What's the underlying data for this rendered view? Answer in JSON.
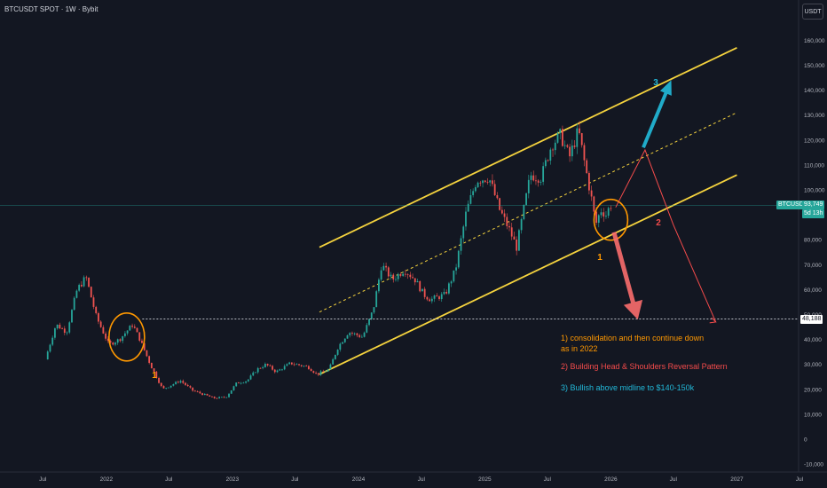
{
  "header": {
    "title": "BTCUSDT SPOT · 1W · Bybit",
    "currency_button": "USDT"
  },
  "price_tags": {
    "symbol": "BTCUSDT",
    "last_price": "93,749",
    "countdown": "5d 13h",
    "level_label": "48,188"
  },
  "colors": {
    "background": "#131722",
    "up_candle": "#26a69a",
    "down_candle": "#ef5350",
    "channel_line": "#f5d33e",
    "scenario_1": "#ff9800",
    "scenario_2": "#f44b4b",
    "scenario_3": "#22b8d8",
    "price_tag": "#26a69a",
    "level_tag": "#ffffff"
  },
  "annotations": {
    "scenario_1_marker": "1",
    "scenario_2_marker": "2",
    "scenario_3_marker": "3",
    "marker_2022": "1",
    "note_1_line1": "1) consolidation and then continue down",
    "note_1_line2": "as in 2022",
    "note_2": "2) Building Head & Shoulders Reversal Pattern",
    "note_3": "3) Bullish above midline to $140-150k"
  },
  "chart_data": {
    "type": "candlestick",
    "title": "BTCUSDT SPOT · 1W · Bybit",
    "xlabel": "",
    "ylabel": "",
    "y_unit": "USDT",
    "ylim": [
      -10000,
      165000
    ],
    "yticks": [
      -10000,
      0,
      10000,
      20000,
      30000,
      40000,
      50000,
      60000,
      70000,
      80000,
      90000,
      100000,
      110000,
      120000,
      130000,
      140000,
      150000,
      160000
    ],
    "ytick_labels": [
      "-10,000",
      "0",
      "10,000",
      "20,000",
      "30,000",
      "40,000",
      "50,000",
      "60,000",
      "70,000",
      "80,000",
      "90,000",
      "100,000",
      "110,000",
      "120,000",
      "130,000",
      "140,000",
      "150,000",
      "160,000"
    ],
    "xlim": [
      "2021-05-15",
      "2027-09-01"
    ],
    "xticks": [
      "2021-07-01",
      "2022-01-01",
      "2022-07-01",
      "2023-01-01",
      "2023-07-01",
      "2024-01-01",
      "2024-07-01",
      "2025-01-01",
      "2025-07-01",
      "2026-01-01",
      "2026-07-01",
      "2027-01-01",
      "2027-07-01"
    ],
    "xtick_labels": [
      "Jul",
      "2022",
      "Jul",
      "2023",
      "Jul",
      "2024",
      "Jul",
      "2025",
      "Jul",
      "2026",
      "Jul",
      "2027",
      "Jul"
    ],
    "grid": false,
    "price_path": [
      [
        "2021-07-15",
        32000
      ],
      [
        "2021-08-15",
        46000
      ],
      [
        "2021-09-15",
        43000
      ],
      [
        "2021-10-15",
        60000
      ],
      [
        "2021-11-10",
        65000
      ],
      [
        "2021-12-10",
        49000
      ],
      [
        "2022-01-15",
        38000
      ],
      [
        "2022-02-15",
        40000
      ],
      [
        "2022-03-25",
        46000
      ],
      [
        "2022-04-15",
        40000
      ],
      [
        "2022-05-15",
        30000
      ],
      [
        "2022-06-20",
        20000
      ],
      [
        "2022-08-10",
        23500
      ],
      [
        "2022-09-15",
        19500
      ],
      [
        "2022-11-15",
        16500
      ],
      [
        "2022-12-20",
        16800
      ],
      [
        "2023-01-20",
        22500
      ],
      [
        "2023-02-20",
        23500
      ],
      [
        "2023-03-20",
        28000
      ],
      [
        "2023-04-15",
        30000
      ],
      [
        "2023-05-15",
        27000
      ],
      [
        "2023-06-25",
        30500
      ],
      [
        "2023-08-15",
        29000
      ],
      [
        "2023-09-10",
        26000
      ],
      [
        "2023-10-15",
        28000
      ],
      [
        "2023-11-10",
        37000
      ],
      [
        "2023-12-10",
        43000
      ],
      [
        "2024-01-20",
        41000
      ],
      [
        "2024-02-20",
        52000
      ],
      [
        "2024-03-15",
        70000
      ],
      [
        "2024-04-15",
        64000
      ],
      [
        "2024-05-20",
        68000
      ],
      [
        "2024-06-20",
        64000
      ],
      [
        "2024-07-15",
        58000
      ],
      [
        "2024-08-05",
        56000
      ],
      [
        "2024-09-15",
        58000
      ],
      [
        "2024-10-15",
        68000
      ],
      [
        "2024-11-15",
        91000
      ],
      [
        "2024-12-15",
        104000
      ],
      [
        "2025-01-20",
        105000
      ],
      [
        "2025-02-20",
        92000
      ],
      [
        "2025-03-20",
        84000
      ],
      [
        "2025-04-10",
        77000
      ],
      [
        "2025-05-20",
        106000
      ],
      [
        "2025-06-20",
        105000
      ],
      [
        "2025-07-20",
        118000
      ],
      [
        "2025-08-15",
        122000
      ],
      [
        "2025-09-10",
        113000
      ],
      [
        "2025-10-06",
        124000
      ],
      [
        "2025-10-25",
        110000
      ],
      [
        "2025-11-15",
        95000
      ],
      [
        "2025-11-25",
        86000
      ],
      [
        "2025-12-10",
        92000
      ],
      [
        "2025-12-25",
        90000
      ],
      [
        "2026-01-06",
        93749
      ]
    ],
    "horizontal_level": 48188,
    "channel": {
      "upper": [
        [
          "2023-09-10",
          77000
        ],
        [
          "2027-01-01",
          157000
        ]
      ],
      "midline": [
        [
          "2023-09-10",
          51000
        ],
        [
          "2027-01-01",
          131000
        ]
      ],
      "lower": [
        [
          "2023-09-10",
          26000
        ],
        [
          "2027-01-01",
          106000
        ]
      ]
    },
    "projections": {
      "scenario_1": [
        [
          "2026-01-10",
          83000
        ],
        [
          "2026-03-20",
          48000
        ]
      ],
      "scenario_2": [
        [
          "2026-01-15",
          93000
        ],
        [
          "2026-04-10",
          116000
        ],
        [
          "2026-07-01",
          86000
        ],
        [
          "2026-11-01",
          47000
        ]
      ],
      "scenario_3": [
        [
          "2026-04-05",
          117000
        ],
        [
          "2026-06-25",
          144000
        ]
      ]
    },
    "highlight_circles": [
      [
        "2022-03-01",
        41000
      ],
      [
        "2026-01-01",
        88000
      ]
    ]
  }
}
